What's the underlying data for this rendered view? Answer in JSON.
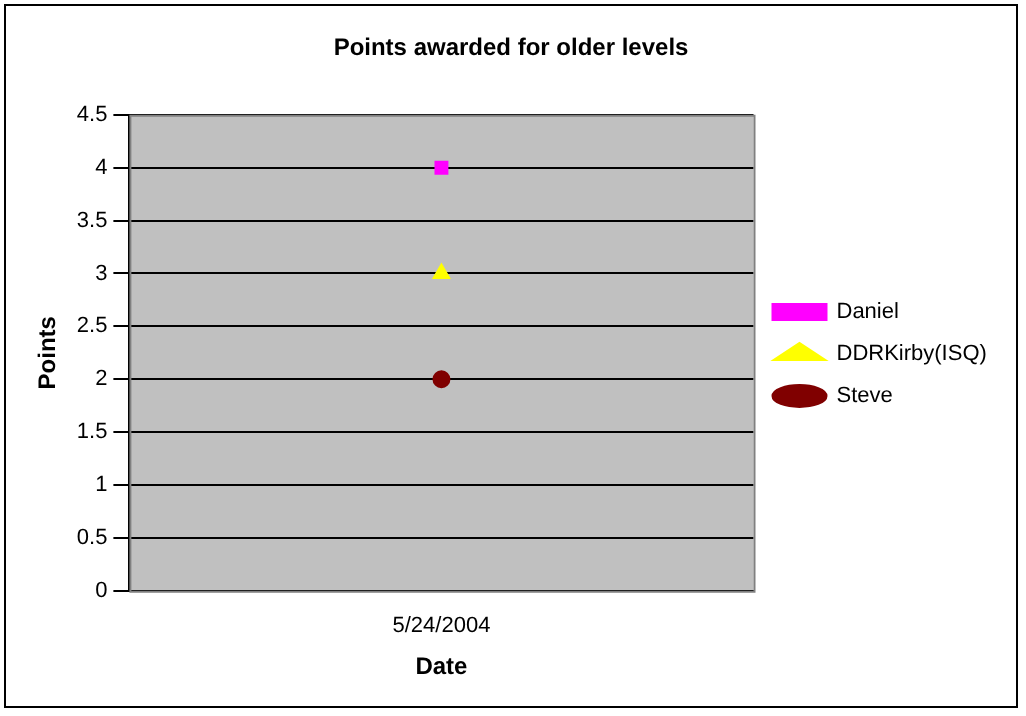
{
  "chart_data": {
    "type": "line",
    "title": "Points awarded for older levels",
    "xlabel": "Date",
    "ylabel": "Points",
    "categories": [
      "5/24/2004"
    ],
    "series": [
      {
        "name": "Daniel",
        "color": "#ff00ff",
        "values": [
          4
        ],
        "marker": "square"
      },
      {
        "name": "DDRKirby(ISQ)",
        "color": "#ffff00",
        "values": [
          3
        ],
        "marker": "triangle"
      },
      {
        "name": "Steve",
        "color": "#800000",
        "values": [
          2
        ],
        "marker": "circle"
      }
    ],
    "ylim": [
      0,
      4.5
    ],
    "yticks": [
      0,
      0.5,
      1,
      1.5,
      2,
      2.5,
      3,
      3.5,
      4,
      4.5
    ],
    "grid": "y",
    "legend": "right"
  }
}
